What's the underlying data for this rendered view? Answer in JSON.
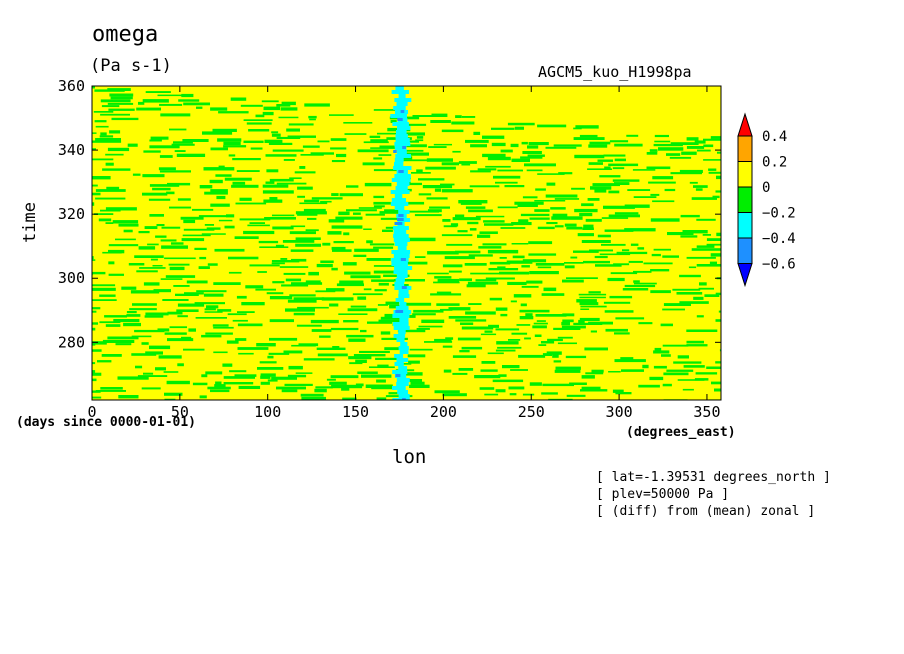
{
  "chart_data": {
    "type": "heatmap",
    "title": "omega",
    "units": "(Pa s-1)",
    "model_label": "AGCM5_kuo_H1998pa",
    "xlabel": "lon",
    "ylabel": "time",
    "x_units": "(degrees_east)",
    "time_units": "(days since 0000-01-01)",
    "xlim": [
      0,
      358
    ],
    "ylim": [
      262,
      360
    ],
    "x_ticks": [
      0,
      50,
      100,
      150,
      200,
      250,
      300,
      350
    ],
    "y_ticks": [
      280,
      300,
      320,
      340,
      360
    ],
    "colorbar": {
      "labels": [
        "0.4",
        "0.2",
        "0",
        "-0.2",
        "-0.4",
        "-0.6"
      ],
      "levels": [
        0.4,
        0.2,
        0,
        -0.2,
        -0.4,
        -0.6
      ],
      "colors": [
        "#ff0000",
        "#ffa500",
        "#ffff00",
        "#00ee00",
        "#00ffff",
        "#1e90ff",
        "#0000ff"
      ]
    },
    "field_description": {
      "dominant_levels": [
        "0 to 0.2 (yellow)",
        "-0.2 to 0 (green)"
      ],
      "notable_feature_lon": 176,
      "notable_feature_range": [
        -0.6,
        -0.2
      ]
    },
    "annotations": [
      "[ lat=-1.39531 degrees_north ]",
      "[ plev=50000 Pa ]",
      "[ (diff) from (mean) zonal ]"
    ]
  }
}
